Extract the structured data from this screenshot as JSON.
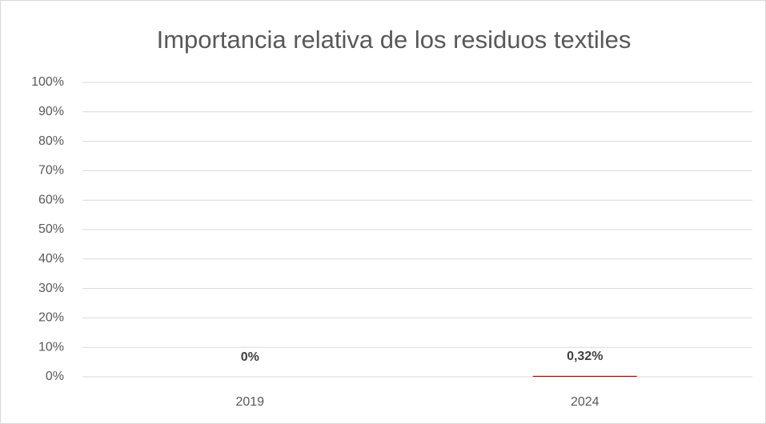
{
  "chart_data": {
    "type": "bar",
    "title": "Importancia relativa de los residuos textiles",
    "categories": [
      "2019",
      "2024"
    ],
    "values": [
      0,
      0.32
    ],
    "value_labels": [
      "0%",
      "0,32%"
    ],
    "color": "#c00000",
    "ylim": [
      0,
      100
    ],
    "yticks": [
      {
        "value": 0,
        "label": "0%"
      },
      {
        "value": 10,
        "label": "10%"
      },
      {
        "value": 20,
        "label": "20%"
      },
      {
        "value": 30,
        "label": "30%"
      },
      {
        "value": 40,
        "label": "40%"
      },
      {
        "value": 50,
        "label": "50%"
      },
      {
        "value": 60,
        "label": "60%"
      },
      {
        "value": 70,
        "label": "70%"
      },
      {
        "value": 80,
        "label": "80%"
      },
      {
        "value": 90,
        "label": "90%"
      },
      {
        "value": 100,
        "label": "100%"
      }
    ],
    "grid": true
  }
}
